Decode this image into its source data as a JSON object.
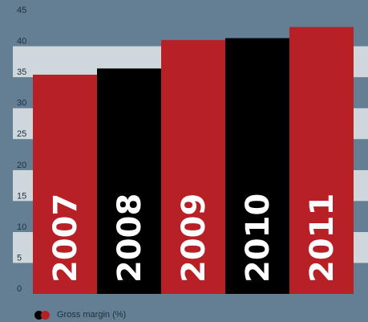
{
  "chart_data": {
    "type": "bar",
    "categories": [
      "2007",
      "2008",
      "2009",
      "2010",
      "2011"
    ],
    "values": [
      35.4,
      36.4,
      41.0,
      41.3,
      43.1
    ],
    "ylim": [
      0,
      45
    ],
    "yticks": [
      0,
      5,
      10,
      15,
      20,
      25,
      30,
      35,
      40,
      45
    ],
    "legend": {
      "label": "Gross margin (%)",
      "colors": [
        "#000000",
        "#b72025"
      ]
    },
    "bar_colors": [
      "#b72025",
      "#000000",
      "#b72025",
      "#000000",
      "#b72025"
    ],
    "band_colors": [
      "#647f93",
      "#ced8dc"
    ]
  }
}
